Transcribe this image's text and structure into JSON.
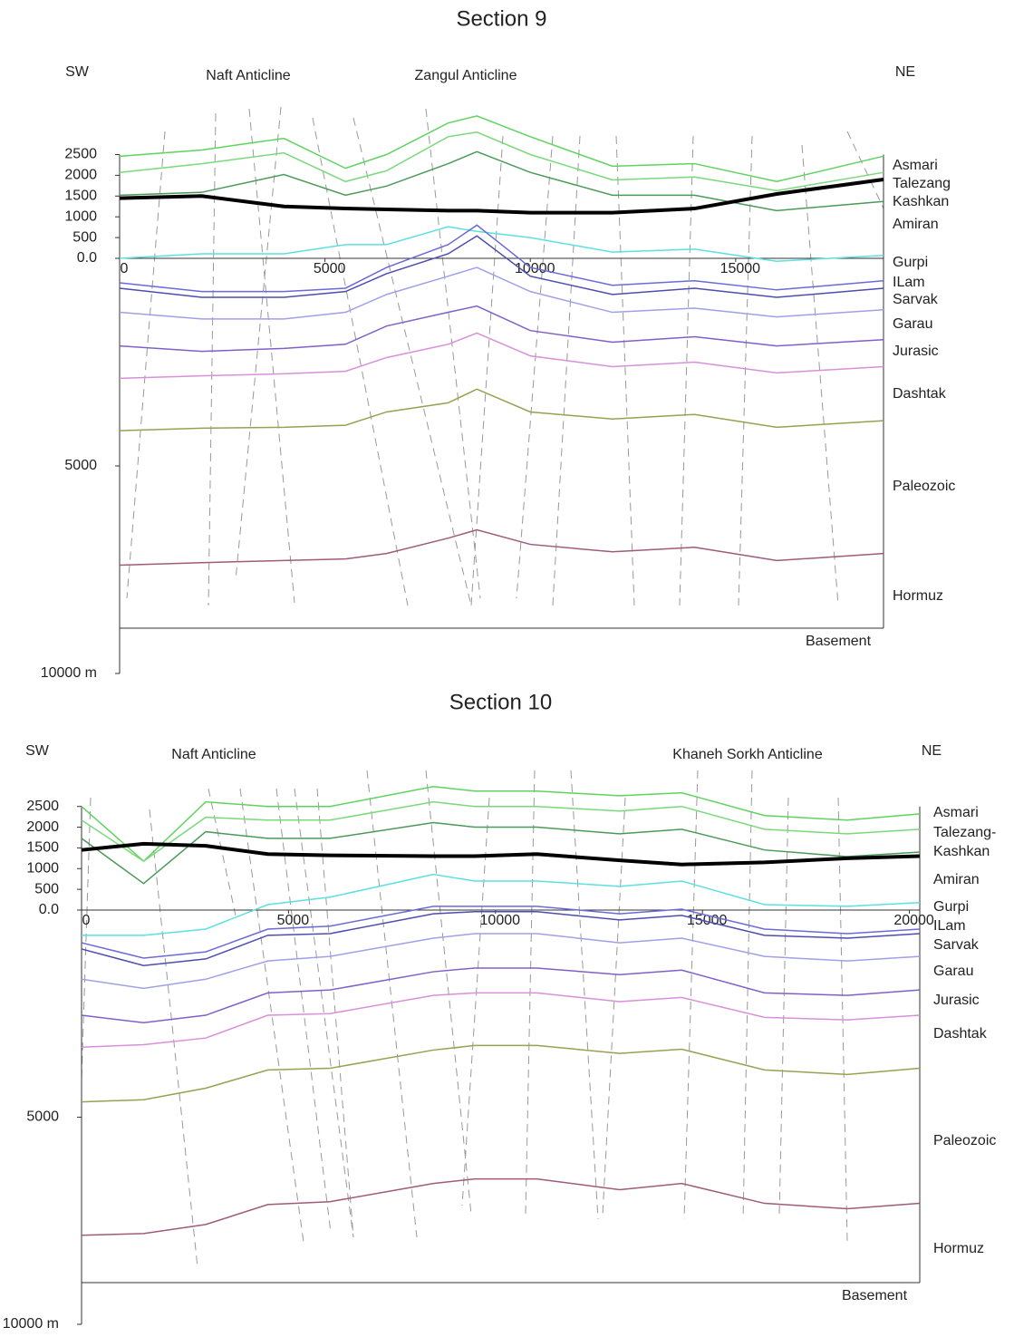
{
  "chart_data": [
    {
      "type": "line",
      "title": "Section 9",
      "direction_left": "SW",
      "direction_right": "NE",
      "anticlines": [
        "Naft Anticline",
        "Zangul Anticline"
      ],
      "formations": [
        "Asmari",
        "Talezang",
        "Kashkan",
        "Amiran",
        "Gurpi",
        "ILam",
        "Sarvak",
        "Garau",
        "Jurasic",
        "Dashtak",
        "Paleozoic",
        "Hormuz"
      ],
      "bottom_label": "Basement",
      "xlim": [
        0,
        18600
      ],
      "xticks": [
        0,
        5000,
        10000,
        15000
      ],
      "ylim": [
        -10000,
        3500
      ],
      "yticks": [
        2500,
        2000,
        1500,
        1000,
        500,
        {
          "value": 0,
          "label": "0.0"
        },
        {
          "value": -5000,
          "label": "5000"
        },
        {
          "value": -10000,
          "label": "10000 m"
        }
      ],
      "x": [
        0,
        2000,
        4000,
        5500,
        6500,
        8000,
        8700,
        10000,
        12000,
        14000,
        16000,
        18600
      ],
      "series": [
        {
          "color": "#5fd35f",
          "values": [
            2460,
            2610,
            2890,
            2170,
            2500,
            3260,
            3430,
            2930,
            2220,
            2280,
            1850,
            2460
          ]
        },
        {
          "color": "#7ad97a",
          "values": [
            2070,
            2280,
            2540,
            1850,
            2110,
            2930,
            3040,
            2500,
            1890,
            1960,
            1630,
            2070
          ]
        },
        {
          "color": "#4a9a5a",
          "values": [
            1520,
            1590,
            2020,
            1520,
            1740,
            2280,
            2570,
            2070,
            1520,
            1520,
            1150,
            1370
          ]
        },
        {
          "color": "#5ce0e0",
          "values": [
            0,
            110,
            110,
            330,
            330,
            760,
            650,
            500,
            150,
            220,
            -70,
            70
          ]
        },
        {
          "color": "#6a6ad8",
          "values": [
            -590,
            -800,
            -800,
            -720,
            -220,
            330,
            800,
            -220,
            -650,
            -540,
            -760,
            -540
          ]
        },
        {
          "color": "#4d4db0",
          "values": [
            -720,
            -940,
            -940,
            -800,
            -370,
            110,
            540,
            -430,
            -870,
            -720,
            -940,
            -720
          ]
        },
        {
          "color": "#a0a0e8",
          "values": [
            -1300,
            -1460,
            -1460,
            -1300,
            -870,
            -430,
            -220,
            -800,
            -1300,
            -1200,
            -1410,
            -1240
          ]
        },
        {
          "color": "#8060c8",
          "values": [
            -2110,
            -2240,
            -2170,
            -2070,
            -1630,
            -1300,
            -1150,
            -1740,
            -2020,
            -1890,
            -2110,
            -1960
          ]
        },
        {
          "color": "#d890d8",
          "values": [
            -2890,
            -2830,
            -2780,
            -2720,
            -2390,
            -2070,
            -1800,
            -2350,
            -2610,
            -2500,
            -2760,
            -2610
          ]
        },
        {
          "color": "#9aa050",
          "values": [
            -4150,
            -4090,
            -4070,
            -4020,
            -3700,
            -3480,
            -3150,
            -3700,
            -3870,
            -3760,
            -4070,
            -3910
          ]
        },
        {
          "color": "#a05a7a",
          "values": [
            -7390,
            -7330,
            -7280,
            -7240,
            -7110,
            -6740,
            -6540,
            -6890,
            -7070,
            -6960,
            -7280,
            -7110
          ]
        },
        {
          "color": "#000000",
          "values": [
            1450,
            1500,
            1250,
            1200,
            1180,
            1150,
            1150,
            1100,
            1100,
            1200,
            1550,
            1900
          ]
        }
      ]
    },
    {
      "type": "line",
      "title": "Section 10",
      "direction_left": "SW",
      "direction_right": "NE",
      "anticlines": [
        "Naft Anticline",
        "Khaneh Sorkh Anticline"
      ],
      "formations": [
        "Asmari",
        "Talezang-",
        "Kashkan",
        "Amiran",
        "Gurpi",
        "ILam",
        "Sarvak",
        "Garau",
        "Jurasic",
        "Dashtak",
        "Paleozoic",
        "Hormuz"
      ],
      "bottom_label": "Basement",
      "xlim": [
        0,
        20250
      ],
      "xticks": [
        0,
        5000,
        10000,
        15000,
        20000
      ],
      "ylim": [
        -10000,
        3500
      ],
      "yticks": [
        2500,
        2000,
        1500,
        1000,
        500,
        {
          "value": 0,
          "label": "0.0"
        },
        {
          "value": -5000,
          "label": "5000"
        },
        {
          "value": -10000,
          "label": "10000 m"
        }
      ],
      "x": [
        0,
        1500,
        3000,
        4500,
        6000,
        8500,
        9500,
        11000,
        13000,
        14500,
        16500,
        18500,
        20250
      ],
      "series": [
        {
          "color": "#5fd35f",
          "values": [
            2500,
            1180,
            2610,
            2500,
            2500,
            2980,
            2870,
            2870,
            2760,
            2830,
            2280,
            2170,
            2320
          ]
        },
        {
          "color": "#7ad97a",
          "values": [
            2170,
            1180,
            2240,
            2170,
            2170,
            2610,
            2500,
            2500,
            2390,
            2500,
            1950,
            1840,
            1950
          ]
        },
        {
          "color": "#4a9a5a",
          "values": [
            1730,
            640,
            1890,
            1730,
            1730,
            2110,
            2000,
            2000,
            1840,
            1950,
            1450,
            1290,
            1400
          ]
        },
        {
          "color": "#5ce0e0",
          "values": [
            -610,
            -610,
            -460,
            130,
            310,
            860,
            700,
            700,
            570,
            700,
            130,
            90,
            180
          ]
        },
        {
          "color": "#6a6ad8",
          "values": [
            -790,
            -1160,
            -1010,
            -460,
            -390,
            90,
            90,
            90,
            -90,
            20,
            -460,
            -570,
            -460
          ]
        },
        {
          "color": "#4d4db0",
          "values": [
            -940,
            -1340,
            -1180,
            -610,
            -570,
            -90,
            -40,
            -40,
            -240,
            -130,
            -610,
            -680,
            -570
          ]
        },
        {
          "color": "#a0a0e8",
          "values": [
            -1670,
            -1890,
            -1670,
            -1230,
            -1120,
            -680,
            -570,
            -570,
            -790,
            -680,
            -1120,
            -1230,
            -1120
          ]
        },
        {
          "color": "#8060c8",
          "values": [
            -2540,
            -2720,
            -2540,
            -2000,
            -1930,
            -1490,
            -1400,
            -1400,
            -1560,
            -1450,
            -2000,
            -2060,
            -1930
          ]
        },
        {
          "color": "#d890d8",
          "values": [
            -3310,
            -3250,
            -3090,
            -2540,
            -2500,
            -2060,
            -2000,
            -2000,
            -2210,
            -2110,
            -2590,
            -2650,
            -2540
          ]
        },
        {
          "color": "#9aa050",
          "values": [
            -4630,
            -4580,
            -4300,
            -3860,
            -3820,
            -3380,
            -3270,
            -3270,
            -3460,
            -3360,
            -3860,
            -3970,
            -3820
          ]
        },
        {
          "color": "#a05a7a",
          "values": [
            -7850,
            -7810,
            -7590,
            -7110,
            -7040,
            -6600,
            -6490,
            -6490,
            -6750,
            -6600,
            -7080,
            -7210,
            -7080
          ]
        },
        {
          "color": "#000000",
          "values": [
            1450,
            1600,
            1550,
            1350,
            1320,
            1300,
            1300,
            1350,
            1200,
            1100,
            1150,
            1250,
            1300
          ]
        }
      ]
    }
  ]
}
